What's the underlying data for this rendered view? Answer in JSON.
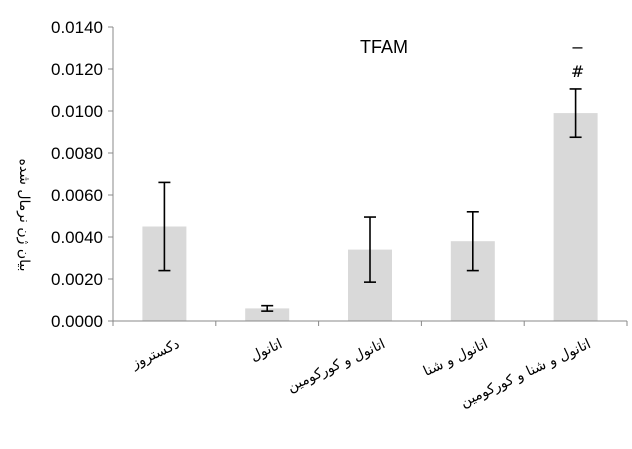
{
  "chart_data": {
    "type": "bar",
    "title": "TFAM",
    "ylabel": "بیان ژن نرمال شده",
    "xlabel": "",
    "categories": [
      "دکستروز",
      "اتانول",
      "اتانول و کورکومین",
      "اتانول و شنا",
      "اتانول و شنا و کورکومین"
    ],
    "category_lines": [
      [
        "دکستروز"
      ],
      [
        "اتانول"
      ],
      [
        "اتانول و کورکومین"
      ],
      [
        "اتانول و شنا"
      ],
      [
        "اتانول و شنا و کورکومین"
      ]
    ],
    "values": [
      0.0045,
      0.0006,
      0.0034,
      0.0038,
      0.0099
    ],
    "errors": [
      0.0021,
      0.00013,
      0.00155,
      0.0014,
      0.00115
    ],
    "ylim": [
      0,
      0.014
    ],
    "yticks": [
      0,
      0.002,
      0.004,
      0.006,
      0.008,
      0.01,
      0.012,
      0.014
    ],
    "ytick_labels": [
      "0.0000",
      "0.0020",
      "0.0040",
      "0.0060",
      "0.0080",
      "0.0100",
      "0.0120",
      "0.0140"
    ],
    "annotations": [
      {
        "category_index": 4,
        "symbol": "#"
      },
      {
        "category_index": 4,
        "symbol": "−"
      }
    ],
    "bar_color": "#d9d9d9",
    "grid": false,
    "legend": "none"
  }
}
